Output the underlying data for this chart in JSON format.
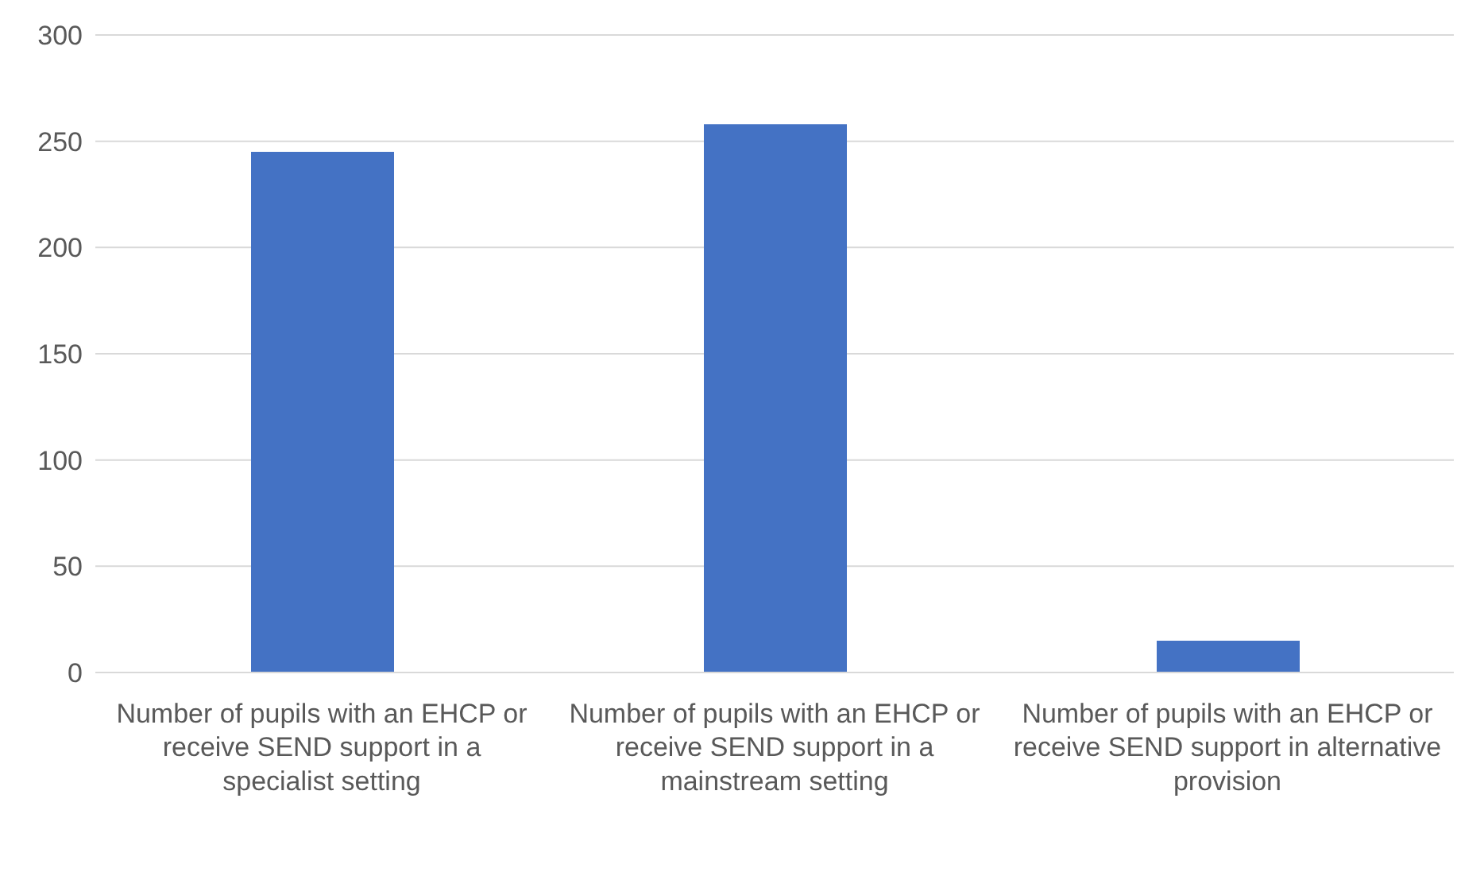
{
  "chart_data": {
    "type": "bar",
    "categories": [
      "Number of pupils with an EHCP or receive SEND support in a specialist setting",
      "Number of pupils with an EHCP or receive SEND support in a mainstream setting",
      "Number of pupils with an EHCP or receive SEND support in alternative provision"
    ],
    "values": [
      245,
      258,
      15
    ],
    "color": "#4472c4",
    "ylim": [
      0,
      300
    ],
    "yticks": [
      0,
      50,
      100,
      150,
      200,
      250,
      300
    ],
    "grid": "y"
  }
}
